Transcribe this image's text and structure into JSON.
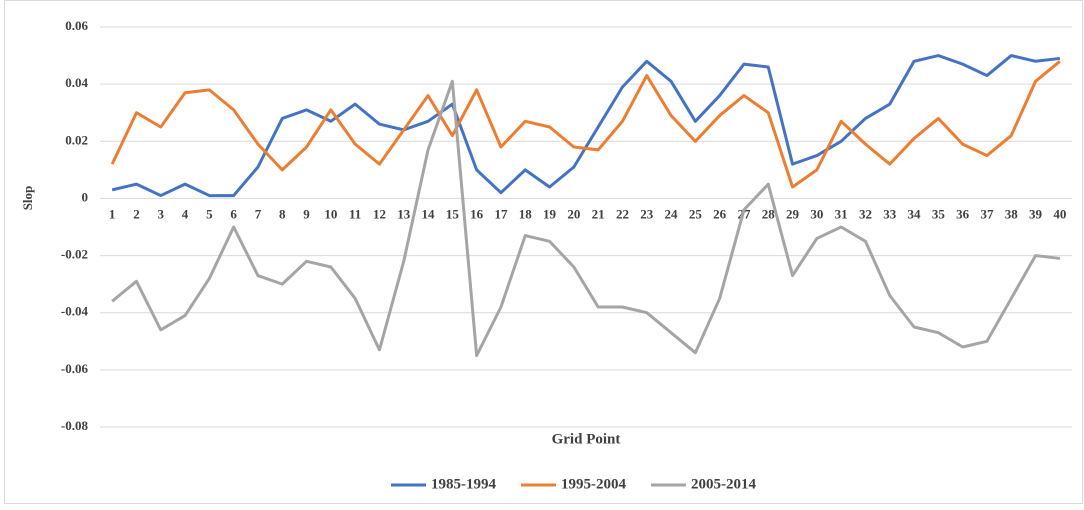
{
  "chart_data": {
    "type": "line",
    "x_label": "Grid Point",
    "y_label": "Slop",
    "categories": [
      "1",
      "2",
      "3",
      "4",
      "5",
      "6",
      "7",
      "8",
      "9",
      "10",
      "11",
      "12",
      "13",
      "14",
      "15",
      "16",
      "17",
      "18",
      "19",
      "20",
      "21",
      "22",
      "23",
      "24",
      "25",
      "26",
      "27",
      "28",
      "29",
      "30",
      "31",
      "32",
      "33",
      "34",
      "35",
      "36",
      "37",
      "38",
      "39",
      "40"
    ],
    "series": [
      {
        "name": "1985-1994",
        "color": "#4472c4",
        "values": [
          0.003,
          0.005,
          0.001,
          0.005,
          0.001,
          0.001,
          0.011,
          0.028,
          0.031,
          0.027,
          0.033,
          0.026,
          0.024,
          0.027,
          0.033,
          0.01,
          0.002,
          0.01,
          0.004,
          0.011,
          0.025,
          0.039,
          0.048,
          0.041,
          0.027,
          0.036,
          0.047,
          0.046,
          0.012,
          0.015,
          0.02,
          0.028,
          0.033,
          0.048,
          0.05,
          0.047,
          0.043,
          0.05,
          0.048,
          0.049
        ]
      },
      {
        "name": "1995-2004",
        "color": "#ed7d31",
        "values": [
          0.012,
          0.03,
          0.025,
          0.037,
          0.038,
          0.031,
          0.019,
          0.01,
          0.018,
          0.031,
          0.019,
          0.012,
          0.024,
          0.036,
          0.022,
          0.038,
          0.018,
          0.027,
          0.025,
          0.018,
          0.017,
          0.027,
          0.043,
          0.029,
          0.02,
          0.029,
          0.036,
          0.03,
          0.004,
          0.01,
          0.027,
          0.019,
          0.012,
          0.021,
          0.028,
          0.019,
          0.015,
          0.022,
          0.041,
          0.048
        ]
      },
      {
        "name": "2005-2014",
        "color": "#a5a5a5",
        "values": [
          -0.036,
          -0.029,
          -0.046,
          -0.041,
          -0.028,
          -0.01,
          -0.027,
          -0.03,
          -0.022,
          -0.024,
          -0.035,
          -0.053,
          -0.022,
          0.017,
          0.041,
          -0.055,
          -0.038,
          -0.013,
          -0.015,
          -0.024,
          -0.038,
          -0.038,
          -0.04,
          -0.047,
          -0.054,
          -0.035,
          -0.004,
          0.005,
          -0.027,
          -0.014,
          -0.01,
          -0.015,
          -0.034,
          -0.045,
          -0.047,
          -0.052,
          -0.05,
          -0.035,
          -0.02,
          -0.021
        ]
      }
    ],
    "ylim": [
      -0.08,
      0.06
    ],
    "yticks": [
      -0.08,
      -0.06,
      -0.04,
      -0.02,
      0,
      0.02,
      0.04,
      0.06
    ],
    "grid": true,
    "legend": "bottom"
  }
}
